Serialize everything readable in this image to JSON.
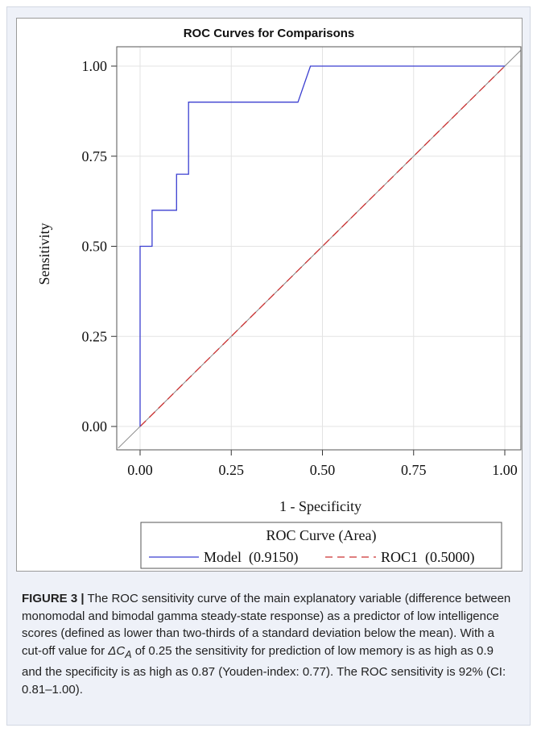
{
  "figure": {
    "label": "FIGURE 3 |",
    "caption_before": " The ROC sensitivity curve of the main explanatory variable (difference between monomodal and bimodal gamma steady-state response) as a predictor of low intelligence scores (defined as lower than two-thirds of a standard deviation below the mean). With a cut-off value for ",
    "caption_symbol": "ΔC",
    "caption_symbol_sub": "A",
    "caption_after": " of 0.25 the sensitivity for prediction of low memory is as high as 0.9 and the specificity is as high as 0.87 (Youden-index: 0.77). The ROC sensitivity is 92% (CI: 0.81–1.00)."
  },
  "chart_data": {
    "type": "line",
    "title": "ROC Curves for Comparisons",
    "xlabel": "1 - Specificity",
    "ylabel": "Sensitivity",
    "xlim": [
      0,
      1
    ],
    "ylim": [
      0,
      1
    ],
    "xticks": [
      "0.00",
      "0.25",
      "0.50",
      "0.75",
      "1.00"
    ],
    "yticks": [
      "0.00",
      "0.25",
      "0.50",
      "0.75",
      "1.00"
    ],
    "grid": true,
    "legend": {
      "title": "ROC Curve (Area)",
      "placement": "bottom",
      "entries": [
        "Model  (0.9150)",
        "ROC1  (0.5000)"
      ]
    },
    "series": [
      {
        "name": "Model",
        "area": 0.915,
        "color": "#3b3fd0",
        "dash": "solid",
        "x": [
          0,
          0,
          0.033,
          0.033,
          0.1,
          0.1,
          0.133,
          0.133,
          0.433,
          0.467,
          1.0
        ],
        "y": [
          0,
          0.5,
          0.5,
          0.6,
          0.6,
          0.7,
          0.7,
          0.9,
          0.9,
          1.0,
          1.0
        ]
      },
      {
        "name": "ROC1",
        "area": 0.5,
        "color": "#cc3333",
        "dash": "dashed",
        "x": [
          0,
          1
        ],
        "y": [
          0,
          1
        ]
      }
    ],
    "reference_line": {
      "color": "#888888",
      "x": [
        -0.06,
        1.08
      ],
      "y": [
        -0.06,
        1.08
      ]
    }
  }
}
